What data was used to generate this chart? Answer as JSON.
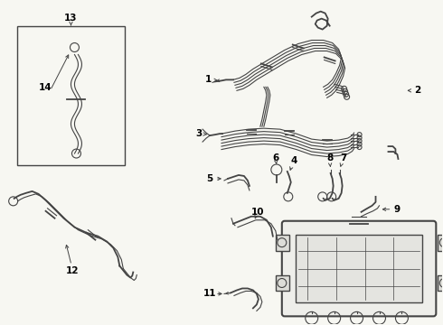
{
  "bg_color": "#f7f7f2",
  "line_color": "#444444",
  "label_color": "#000000",
  "fig_width": 4.9,
  "fig_height": 3.6,
  "dpi": 100
}
